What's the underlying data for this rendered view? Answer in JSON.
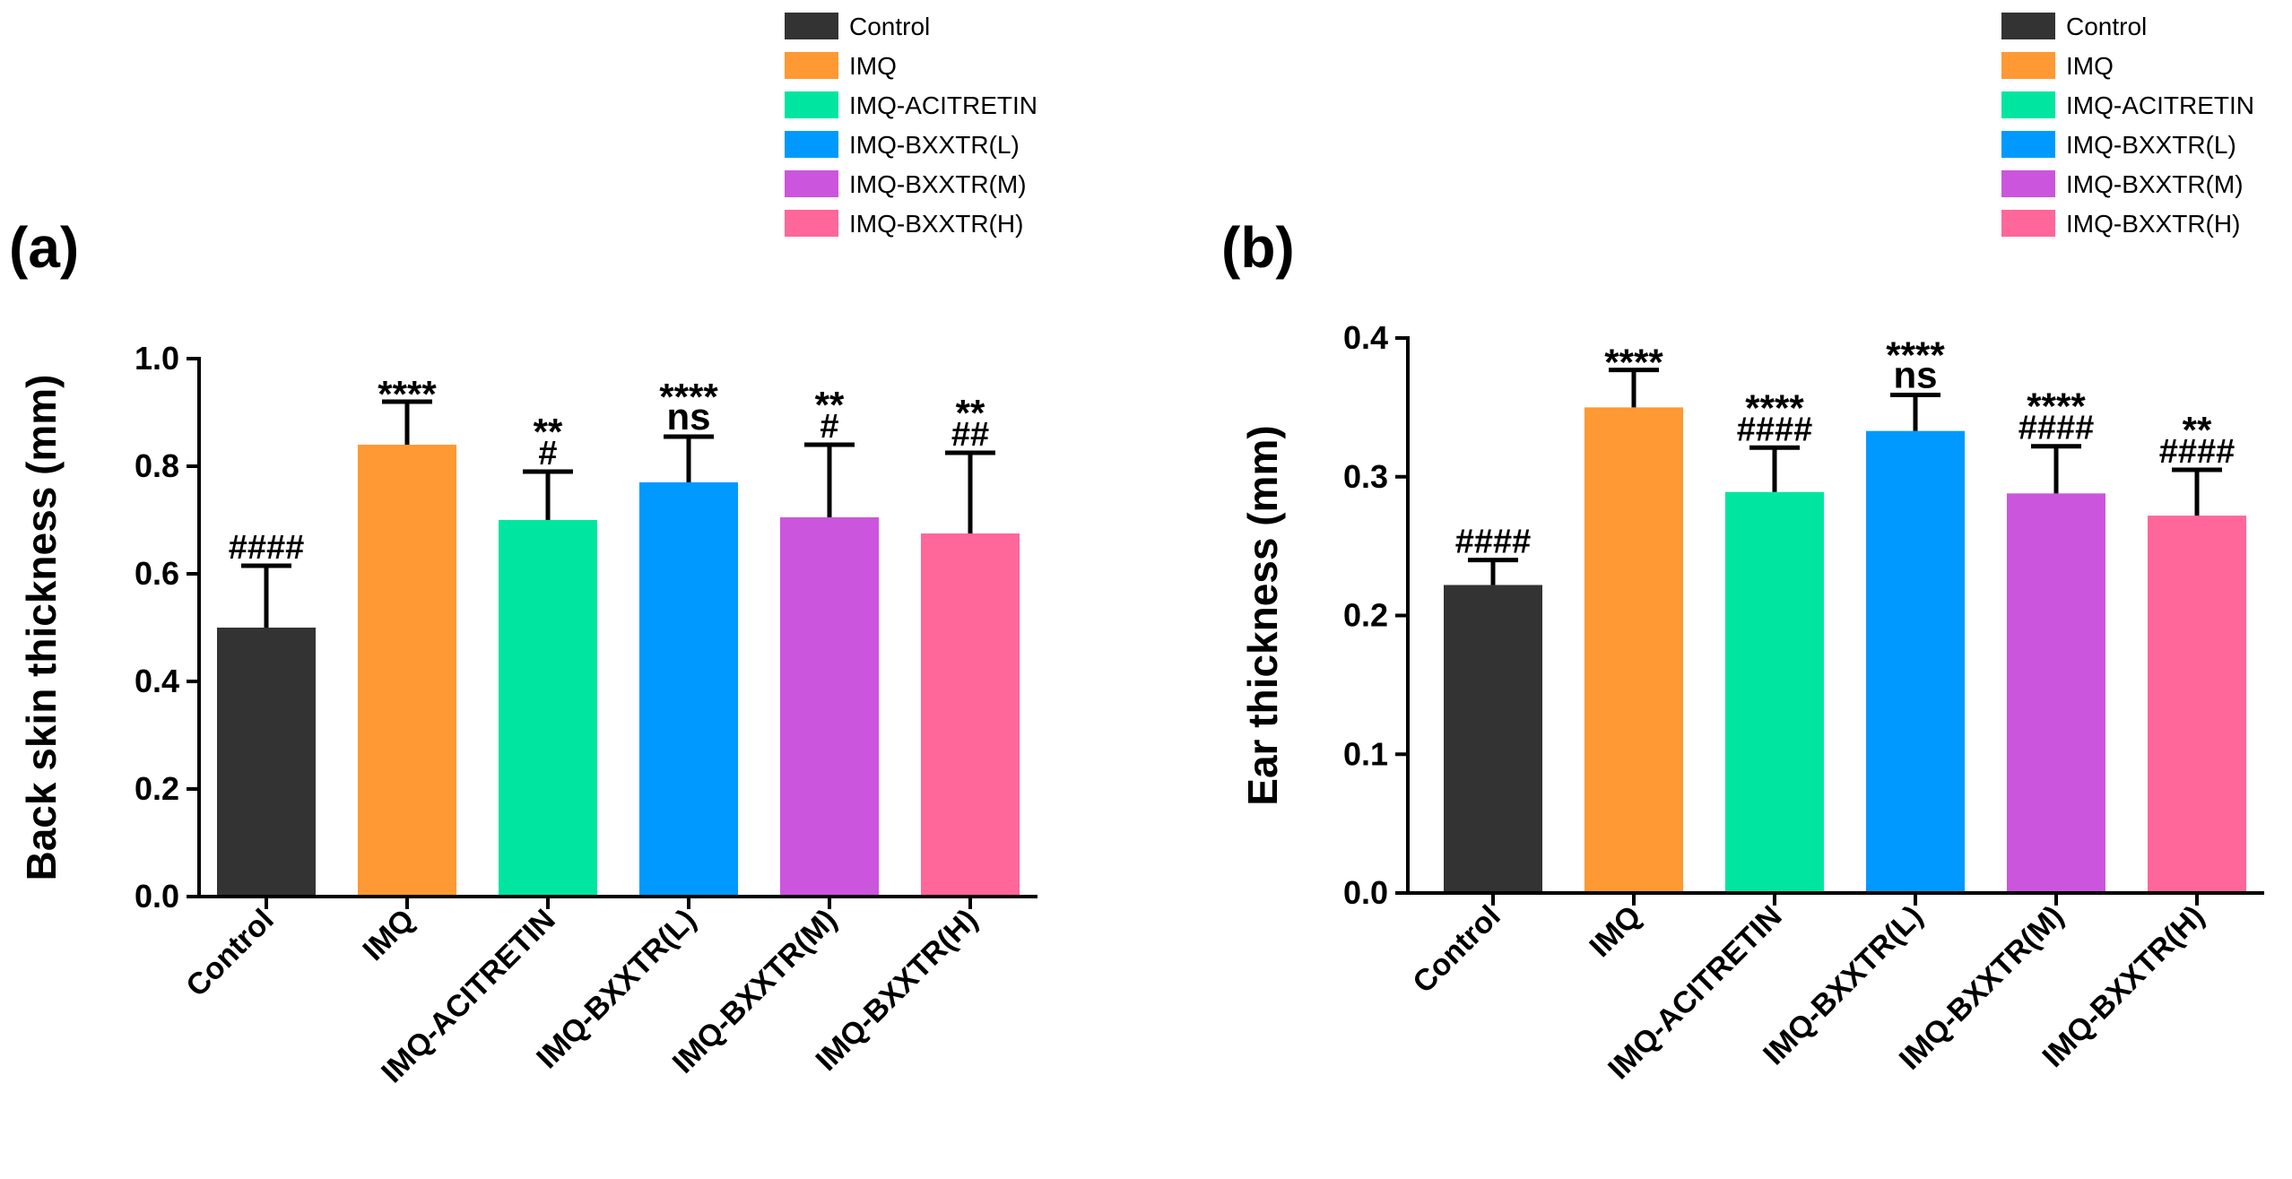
{
  "chart_data": [
    {
      "type": "bar",
      "panel_label": "(a)",
      "ylabel": "Back skin thickness (mm)",
      "xlabel": "",
      "ylim": [
        0,
        1.0
      ],
      "yticks": [
        "0.0",
        "0.2",
        "0.4",
        "0.6",
        "0.8",
        "1.0"
      ],
      "categories": [
        "Control",
        "IMQ",
        "IMQ-ACITRETIN",
        "IMQ-BXXTR(L)",
        "IMQ-BXXTR(M)",
        "IMQ-BXXTR(H)"
      ],
      "values": [
        0.5,
        0.84,
        0.7,
        0.77,
        0.705,
        0.675
      ],
      "errors": [
        0.115,
        0.08,
        0.09,
        0.085,
        0.135,
        0.15
      ],
      "annotations": [
        [
          "####"
        ],
        [
          "****"
        ],
        [
          "**",
          "#"
        ],
        [
          "****",
          "ns"
        ],
        [
          "**",
          "#"
        ],
        [
          "**",
          "##"
        ]
      ],
      "legend": {
        "position": "top-right",
        "entries": [
          "Control",
          "IMQ",
          "IMQ-ACITRETIN",
          "IMQ-BXXTR(L)",
          "IMQ-BXXTR(M)",
          "IMQ-BXXTR(H)"
        ]
      }
    },
    {
      "type": "bar",
      "panel_label": "(b)",
      "ylabel": "Ear thickness (mm)",
      "xlabel": "",
      "ylim": [
        0,
        0.4
      ],
      "yticks": [
        "0.0",
        "0.1",
        "0.2",
        "0.3",
        "0.4"
      ],
      "categories": [
        "Control",
        "IMQ",
        "IMQ-ACITRETIN",
        "IMQ-BXXTR(L)",
        "IMQ-BXXTR(M)",
        "IMQ-BXXTR(H)"
      ],
      "values": [
        0.222,
        0.35,
        0.289,
        0.333,
        0.288,
        0.272
      ],
      "errors": [
        0.018,
        0.027,
        0.032,
        0.026,
        0.034,
        0.033
      ],
      "annotations": [
        [
          "####"
        ],
        [
          "****"
        ],
        [
          "****",
          "####"
        ],
        [
          "****",
          "ns"
        ],
        [
          "****",
          "####"
        ],
        [
          "**",
          "####"
        ]
      ],
      "legend": {
        "position": "top-right",
        "entries": [
          "Control",
          "IMQ",
          "IMQ-ACITRETIN",
          "IMQ-BXXTR(L)",
          "IMQ-BXXTR(M)",
          "IMQ-BXXTR(H)"
        ]
      }
    }
  ],
  "colors": [
    "#333333",
    "#FF9933",
    "#00E6A0",
    "#0099FF",
    "#CC55DD",
    "#FF6699"
  ]
}
